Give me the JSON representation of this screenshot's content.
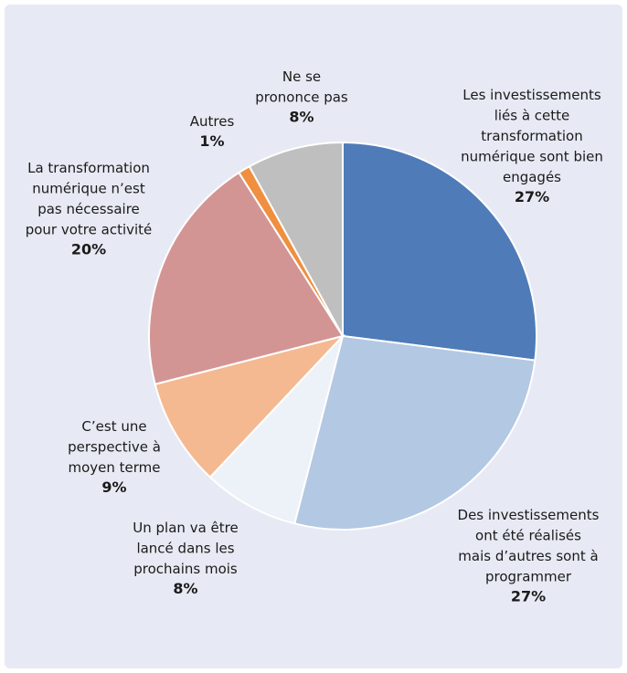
{
  "chart_data": {
    "type": "pie",
    "categories": [
      "Les investissements\nliés à cette\ntransformation\nnumérique sont bien\nengagés",
      "Des investissements\nont été réalisés\nmais d’autres sont à\nprogrammer",
      "Un plan va être\nlancé dans les\nprochains mois",
      "C’est une\nperspective à\nmoyen terme",
      "La transformation\nnumérique n’est\npas nécessaire\npour votre activité",
      "Autres",
      "Ne se\nprononce pas"
    ],
    "values": [
      27,
      27,
      8,
      9,
      20,
      1,
      8
    ],
    "value_labels": [
      "27%",
      "27%",
      "8%",
      "9%",
      "20%",
      "1%",
      "8%"
    ],
    "colors": [
      "#4f7bb8",
      "#b3c8e2",
      "#edf1f8",
      "#f4b990",
      "#d39594",
      "#ef8f3f",
      "#bfbfbf"
    ]
  }
}
